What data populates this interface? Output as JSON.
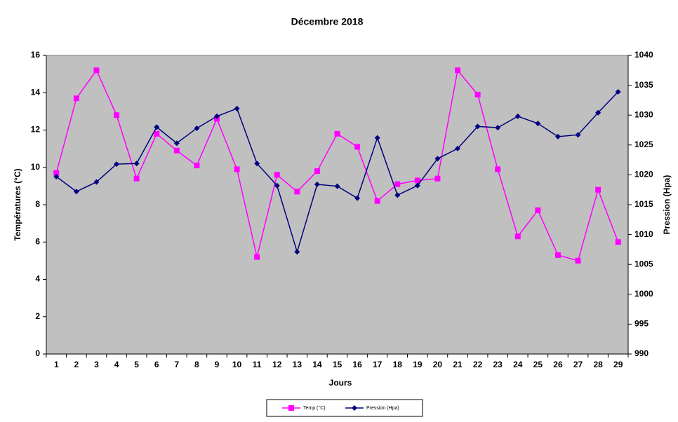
{
  "chart_data": {
    "type": "line",
    "title": "Décembre 2018",
    "x_label": "Jours",
    "y_label": "Températures (°C)",
    "y2_label": "Pression (Hpa)",
    "categories": [
      "1",
      "2",
      "3",
      "4",
      "5",
      "6",
      "7",
      "8",
      "9",
      "10",
      "11",
      "12",
      "13",
      "14",
      "15",
      "16",
      "17",
      "18",
      "19",
      "20",
      "21",
      "22",
      "23",
      "24",
      "25",
      "26",
      "27",
      "28",
      "29"
    ],
    "series": [
      {
        "name": "Temp (°C)",
        "color": "#ff00ff",
        "marker": "square",
        "values": [
          9.7,
          13.7,
          15.2,
          12.8,
          9.4,
          11.8,
          10.9,
          10.1,
          12.6,
          9.9,
          5.2,
          9.6,
          8.7,
          9.8,
          11.8,
          11.1,
          8.2,
          9.1,
          9.3,
          9.4,
          15.2,
          13.9,
          9.9,
          6.3,
          7.7,
          5.3,
          5.0,
          8.8,
          6.0
        ]
      },
      {
        "name": "Pression (Hpa)",
        "color": "#000080",
        "marker": "diamond",
        "axis": "y2",
        "values": [
          1019.7,
          1017.2,
          1018.8,
          1021.8,
          1021.9,
          1028.0,
          1025.3,
          1027.8,
          1029.8,
          1031.1,
          1021.9,
          1018.2,
          1007.1,
          1018.4,
          1018.1,
          1016.1,
          1026.2,
          1016.6,
          1018.2,
          1022.7,
          1024.4,
          1028.1,
          1027.9,
          1029.8,
          1028.6,
          1026.4,
          1026.7,
          1030.4,
          1033.9
        ]
      }
    ],
    "ylim": [
      0,
      16
    ],
    "yticks": [
      0,
      2,
      4,
      6,
      8,
      10,
      12,
      14,
      16
    ],
    "y2lim": [
      990,
      1040
    ],
    "y2ticks": [
      990,
      995,
      1000,
      1005,
      1010,
      1015,
      1020,
      1025,
      1030,
      1035,
      1040
    ],
    "grid": false,
    "plot_background": "#c0c0c0",
    "legend": "bottom"
  }
}
